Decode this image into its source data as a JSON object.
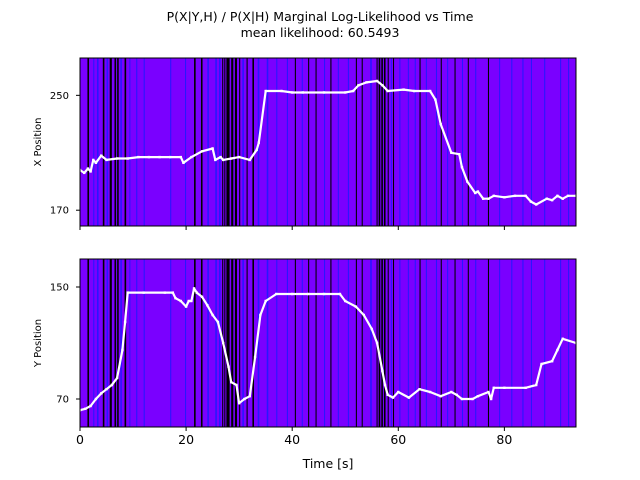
{
  "chart_data": {
    "title_line1": "P(X|Y,H) / P(X|H) Marginal Log-Likelihood vs Time",
    "title_line2": "mean likelihood: 60.5493",
    "xlabel": "Time [s]",
    "xlim": [
      0,
      93.5
    ],
    "xticks": [
      "0",
      "20",
      "40",
      "60",
      "80"
    ],
    "colors": {
      "background": "#7a00ff",
      "dark_band": "#000000",
      "blue_band": "#1a1aff",
      "trajectory": "#ffffff"
    },
    "dark_bands_s": [
      [
        1.4,
        1.7
      ],
      [
        4.3,
        4.6
      ],
      [
        5.6,
        6.0
      ],
      [
        6.5,
        6.8
      ],
      [
        7.0,
        7.3
      ],
      [
        8.4,
        8.7
      ],
      [
        21.5,
        21.8
      ],
      [
        22.8,
        23.1
      ],
      [
        26.8,
        27.0
      ],
      [
        27.2,
        27.4
      ],
      [
        27.6,
        28.2
      ],
      [
        28.5,
        28.9
      ],
      [
        29.2,
        29.6
      ],
      [
        30.0,
        30.2
      ],
      [
        31.4,
        31.6
      ],
      [
        32.5,
        32.8
      ],
      [
        40.5,
        40.7
      ],
      [
        43.0,
        43.2
      ],
      [
        44.4,
        44.6
      ],
      [
        47.2,
        47.4
      ],
      [
        52.0,
        52.2
      ],
      [
        53.1,
        53.3
      ],
      [
        55.9,
        56.1
      ],
      [
        56.3,
        56.6
      ],
      [
        56.8,
        57.1
      ],
      [
        57.3,
        57.6
      ],
      [
        58.0,
        58.2
      ],
      [
        59.0,
        59.2
      ],
      [
        64.0,
        64.2
      ],
      [
        68.0,
        68.2
      ],
      [
        70.6,
        70.8
      ],
      [
        73.1,
        73.3
      ],
      [
        76.9,
        77.1
      ]
    ],
    "blue_bands_s": [
      [
        2.5,
        2.7
      ],
      [
        3.2,
        3.5
      ],
      [
        5.0,
        5.3
      ],
      [
        7.6,
        7.9
      ],
      [
        9.3,
        9.5
      ],
      [
        10.6,
        10.8
      ],
      [
        12.0,
        12.2
      ],
      [
        17.0,
        17.2
      ],
      [
        19.8,
        20.0
      ],
      [
        24.0,
        24.3
      ],
      [
        25.5,
        25.8
      ],
      [
        26.2,
        26.5
      ],
      [
        30.6,
        30.9
      ],
      [
        33.5,
        33.8
      ],
      [
        35.2,
        35.5
      ],
      [
        37.0,
        37.2
      ],
      [
        39.0,
        39.2
      ],
      [
        41.8,
        42.0
      ],
      [
        46.0,
        46.2
      ],
      [
        48.6,
        48.8
      ],
      [
        50.5,
        50.7
      ],
      [
        54.7,
        55.0
      ],
      [
        58.6,
        58.8
      ],
      [
        60.2,
        60.4
      ],
      [
        61.8,
        62.0
      ],
      [
        63.1,
        63.3
      ],
      [
        65.2,
        65.4
      ],
      [
        67.1,
        67.3
      ],
      [
        69.2,
        69.4
      ],
      [
        72.0,
        72.2
      ],
      [
        74.5,
        74.7
      ],
      [
        79.0,
        79.2
      ],
      [
        81.3,
        81.5
      ],
      [
        83.4,
        83.6
      ],
      [
        85.0,
        85.2
      ],
      [
        87.5,
        87.7
      ],
      [
        90.5,
        90.7
      ],
      [
        92.0,
        92.2
      ]
    ],
    "panels": [
      {
        "type": "heatmap",
        "ylabel": "X Position",
        "ylim": [
          159,
          276
        ],
        "yticks": [
          "250",
          "170"
        ],
        "series": [
          {
            "x": [
              0,
              0.8,
              1.5,
              2,
              2.5,
              3,
              4,
              5,
              7,
              9,
              11,
              13,
              15,
              17,
              19,
              19.5,
              21,
              23,
              25,
              25.5,
              26.5,
              27,
              28.5,
              30,
              32,
              33.3,
              33.7,
              35,
              38,
              40,
              42,
              46,
              50,
              51.5,
              52.5,
              54,
              56,
              57,
              58,
              61,
              63,
              66,
              67,
              68,
              70,
              71.5,
              72,
              73,
              74.5,
              75,
              76,
              77,
              78,
              80,
              82,
              84,
              85,
              86,
              88,
              89,
              90,
              91,
              92,
              93.5
            ],
            "y": [
              198,
              196,
              199,
              197,
              205,
              203,
              208,
              205,
              206,
              206,
              207,
              207,
              207,
              207,
              207,
              203,
              207,
              211,
              213,
              205,
              207,
              205,
              206,
              207,
              205,
              212,
              217,
              253,
              253,
              252,
              252,
              252,
              252,
              253,
              257,
              259,
              260,
              257,
              253,
              254,
              253,
              253,
              247,
              230,
              210,
              209,
              200,
              190,
              182,
              183,
              178,
              178,
              180,
              179,
              180,
              180,
              176,
              174,
              178,
              177,
              180,
              178,
              180,
              180
            ]
          }
        ]
      },
      {
        "type": "heatmap",
        "ylabel": "Y Position",
        "ylim": [
          50,
          170
        ],
        "yticks": [
          "150",
          "70"
        ],
        "series": [
          {
            "x": [
              0,
              1,
              2,
              3,
              4,
              5,
              6,
              7,
              8,
              8.5,
              9,
              12,
              16,
              17.5,
              18,
              19,
              20,
              20.5,
              21,
              21.5,
              22,
              23,
              24,
              25,
              26,
              27,
              28,
              28.5,
              29.5,
              30,
              31,
              32,
              33,
              34,
              35,
              37,
              40,
              43,
              46,
              49,
              50,
              52,
              53.5,
              55,
              56,
              57,
              57.5,
              58,
              59,
              60,
              62,
              64,
              66,
              68,
              70,
              71,
              72,
              74,
              75,
              77,
              77.5,
              78,
              80,
              84,
              86,
              87,
              89,
              90,
              91,
              93.5
            ],
            "y": [
              62,
              63,
              65,
              70,
              74,
              77,
              80,
              85,
              105,
              125,
              146,
              146,
              146,
              146,
              142,
              140,
              136,
              140,
              140,
              149,
              146,
              143,
              137,
              130,
              125,
              110,
              93,
              82,
              80,
              67,
              70,
              72,
              100,
              130,
              140,
              145,
              145,
              145,
              145,
              145,
              140,
              136,
              130,
              120,
              110,
              90,
              80,
              73,
              71,
              75,
              71,
              77,
              75,
              72,
              75,
              73,
              70,
              70,
              72,
              75,
              70,
              78,
              78,
              78,
              80,
              95,
              97,
              105,
              113,
              110
            ]
          }
        ]
      }
    ]
  }
}
